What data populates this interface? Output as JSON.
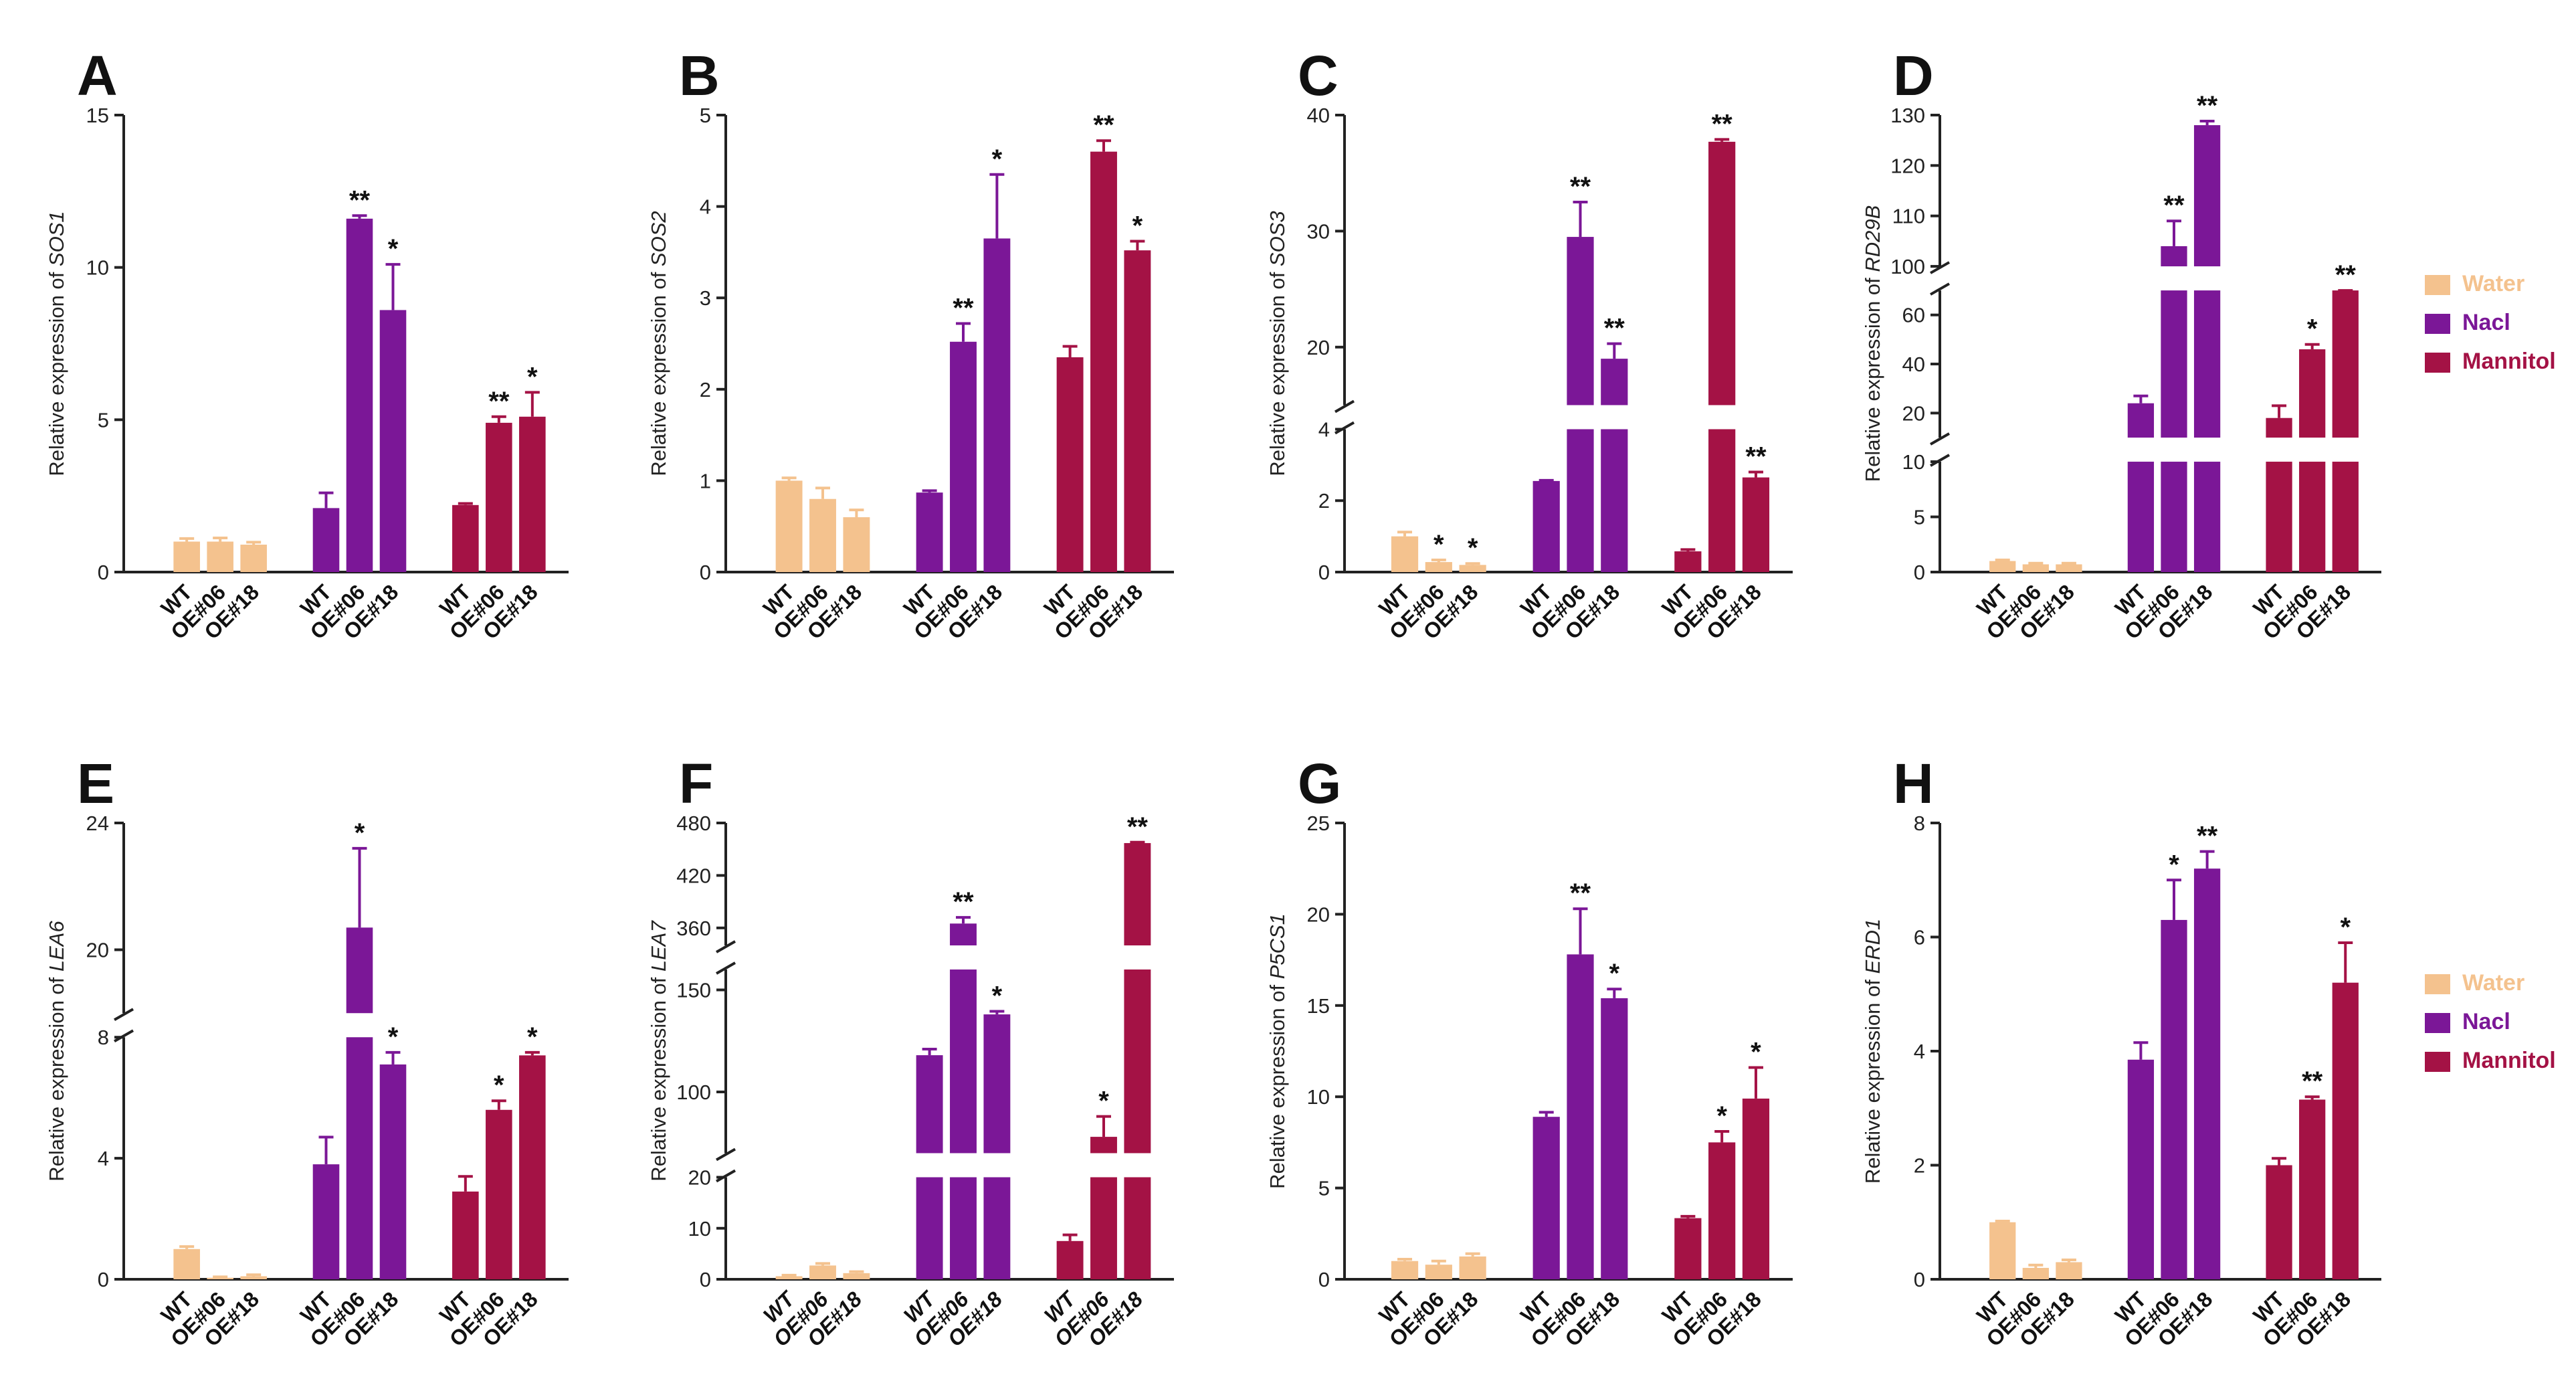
{
  "chart_data": [
    {
      "panel": "A",
      "type": "bar",
      "gene": "SOS1",
      "ylabel_prefix": "Relative expression of ",
      "categories": [
        "WT",
        "OE#06",
        "OE#18"
      ],
      "groups": [
        "Water",
        "Nacl",
        "Mannitol"
      ],
      "segments": [
        {
          "range": [
            0,
            15
          ],
          "ticks": [
            "0",
            "5",
            "10",
            "15"
          ]
        }
      ],
      "bars": [
        [
          1.0,
          1.0,
          0.9
        ],
        [
          2.1,
          11.6,
          8.6
        ],
        [
          2.2,
          4.9,
          5.1
        ]
      ],
      "errors": [
        [
          0.1,
          0.12,
          0.08
        ],
        [
          0.5,
          0.1,
          1.5
        ],
        [
          0.05,
          0.2,
          0.8
        ]
      ],
      "significance": [
        [
          "",
          "",
          ""
        ],
        [
          "",
          "**",
          "*"
        ],
        [
          "",
          "**",
          "*"
        ]
      ]
    },
    {
      "panel": "B",
      "type": "bar",
      "gene": "SOS2",
      "ylabel_prefix": "Relative expression of ",
      "categories": [
        "WT",
        "OE#06",
        "OE#18"
      ],
      "groups": [
        "Water",
        "Nacl",
        "Mannitol"
      ],
      "segments": [
        {
          "range": [
            0,
            5
          ],
          "ticks": [
            "0",
            "1",
            "2",
            "3",
            "4",
            "5"
          ]
        }
      ],
      "bars": [
        [
          1.0,
          0.8,
          0.6
        ],
        [
          0.87,
          2.52,
          3.65
        ],
        [
          2.35,
          4.6,
          3.52
        ]
      ],
      "errors": [
        [
          0.03,
          0.12,
          0.08
        ],
        [
          0.02,
          0.2,
          0.7
        ],
        [
          0.12,
          0.12,
          0.1
        ]
      ],
      "significance": [
        [
          "",
          "",
          ""
        ],
        [
          "",
          "**",
          "*"
        ],
        [
          "",
          "**",
          "*"
        ]
      ]
    },
    {
      "panel": "C",
      "type": "bar",
      "gene": "SOS3",
      "ylabel_prefix": "Relative expression of ",
      "categories": [
        "WT",
        "OE#06",
        "OE#18"
      ],
      "groups": [
        "Water",
        "Nacl",
        "Mannitol"
      ],
      "segments": [
        {
          "range": [
            0,
            4
          ],
          "ticks": [
            "0",
            "2",
            "4"
          ]
        },
        {
          "range": [
            15,
            40
          ],
          "ticks": [
            "20",
            "30",
            "40"
          ]
        }
      ],
      "bars": [
        [
          1.0,
          0.28,
          0.2
        ],
        [
          2.55,
          29.5,
          19.0
        ],
        [
          0.58,
          37.7,
          2.65
        ]
      ],
      "errors": [
        [
          0.12,
          0.06,
          0.04
        ],
        [
          0.02,
          3.0,
          1.3
        ],
        [
          0.05,
          0.2,
          0.15
        ]
      ],
      "significance": [
        [
          "",
          "*",
          "*"
        ],
        [
          "",
          "**",
          "**"
        ],
        [
          "",
          "**",
          "**"
        ]
      ]
    },
    {
      "panel": "D",
      "type": "bar",
      "gene": "RD29B",
      "ylabel_prefix": "Relative expression of ",
      "categories": [
        "WT",
        "OE#06",
        "OE#18"
      ],
      "groups": [
        "Water",
        "Nacl",
        "Mannitol"
      ],
      "segments": [
        {
          "range": [
            0,
            10
          ],
          "ticks": [
            "0",
            "5",
            "10"
          ]
        },
        {
          "range": [
            10,
            70
          ],
          "ticks": [
            "20",
            "40",
            "60"
          ]
        },
        {
          "range": [
            100,
            130
          ],
          "ticks": [
            "100",
            "110",
            "120",
            "130"
          ]
        }
      ],
      "bars": [
        [
          1.0,
          0.7,
          0.7
        ],
        [
          24,
          104,
          128
        ],
        [
          18,
          46,
          70
        ]
      ],
      "errors": [
        [
          0.1,
          0.1,
          0.1
        ],
        [
          3,
          5,
          0.8
        ],
        [
          5,
          2,
          6
        ]
      ],
      "significance": [
        [
          "",
          "",
          ""
        ],
        [
          "",
          "**",
          "**"
        ],
        [
          "",
          "*",
          "**"
        ]
      ]
    },
    {
      "panel": "E",
      "type": "bar",
      "gene": "LEA6",
      "ylabel_prefix": "Relative expression of ",
      "categories": [
        "WT",
        "OE#06",
        "OE#18"
      ],
      "groups": [
        "Water",
        "Nacl",
        "Mannitol"
      ],
      "segments": [
        {
          "range": [
            0,
            8
          ],
          "ticks": [
            "0",
            "4",
            "8"
          ]
        },
        {
          "range": [
            18,
            24
          ],
          "ticks": [
            "20",
            "24"
          ]
        }
      ],
      "bars": [
        [
          1.0,
          0.05,
          0.1
        ],
        [
          3.8,
          20.7,
          7.1
        ],
        [
          2.9,
          5.6,
          7.4
        ]
      ],
      "errors": [
        [
          0.08,
          0.03,
          0.05
        ],
        [
          0.9,
          2.5,
          0.4
        ],
        [
          0.5,
          0.3,
          0.1
        ]
      ],
      "significance": [
        [
          "",
          "",
          ""
        ],
        [
          "",
          "*",
          "*"
        ],
        [
          "",
          "*",
          "*"
        ]
      ]
    },
    {
      "panel": "F",
      "type": "bar",
      "gene": "LEA7",
      "ylabel_prefix": "Relative expression of ",
      "categories": [
        "WT",
        "OE#06",
        "OE#18"
      ],
      "groups": [
        "Water",
        "Nacl",
        "Mannitol"
      ],
      "italic_categories": true,
      "segments": [
        {
          "range": [
            0,
            20
          ],
          "ticks": [
            "0",
            "10",
            "20"
          ]
        },
        {
          "range": [
            70,
            160
          ],
          "ticks": [
            "100",
            "150"
          ]
        },
        {
          "range": [
            340,
            480
          ],
          "ticks": [
            "360",
            "420",
            "480"
          ]
        }
      ],
      "bars": [
        [
          0.6,
          2.7,
          1.2
        ],
        [
          118,
          365,
          138
        ],
        [
          7.5,
          78,
          457
        ]
      ],
      "errors": [
        [
          0.2,
          0.4,
          0.3
        ],
        [
          3,
          7,
          1.5
        ],
        [
          1.2,
          10,
          1
        ]
      ],
      "significance": [
        [
          "",
          "",
          ""
        ],
        [
          "",
          "**",
          "*"
        ],
        [
          "",
          "*",
          "**"
        ]
      ]
    },
    {
      "panel": "G",
      "type": "bar",
      "gene": "P5CS1",
      "ylabel_prefix": "Relative expression of ",
      "categories": [
        "WT",
        "OE#06",
        "OE#18"
      ],
      "groups": [
        "Water",
        "Nacl",
        "Mannitol"
      ],
      "segments": [
        {
          "range": [
            0,
            25
          ],
          "ticks": [
            "0",
            "5",
            "10",
            "15",
            "20",
            "25"
          ]
        }
      ],
      "bars": [
        [
          1.0,
          0.8,
          1.25
        ],
        [
          8.9,
          17.8,
          15.4
        ],
        [
          3.35,
          7.5,
          9.9
        ]
      ],
      "errors": [
        [
          0.1,
          0.2,
          0.15
        ],
        [
          0.25,
          2.5,
          0.5
        ],
        [
          0.1,
          0.6,
          1.7
        ]
      ],
      "significance": [
        [
          "",
          "",
          ""
        ],
        [
          "",
          "**",
          "*"
        ],
        [
          "",
          "*",
          "*"
        ]
      ]
    },
    {
      "panel": "H",
      "type": "bar",
      "gene": "ERD1",
      "ylabel_prefix": "Relative expression of ",
      "categories": [
        "WT",
        "OE#06",
        "OE#18"
      ],
      "groups": [
        "Water",
        "Nacl",
        "Mannitol"
      ],
      "segments": [
        {
          "range": [
            0,
            8
          ],
          "ticks": [
            "0",
            "2",
            "4",
            "6",
            "8"
          ]
        }
      ],
      "bars": [
        [
          1.0,
          0.2,
          0.3
        ],
        [
          3.85,
          6.3,
          7.2
        ],
        [
          2.0,
          3.15,
          5.2
        ]
      ],
      "errors": [
        [
          0.02,
          0.05,
          0.04
        ],
        [
          0.3,
          0.7,
          0.3
        ],
        [
          0.12,
          0.05,
          0.7
        ]
      ],
      "significance": [
        [
          "",
          "",
          ""
        ],
        [
          "",
          "*",
          "**"
        ],
        [
          "",
          "**",
          "*"
        ]
      ]
    }
  ],
  "legend": {
    "entries": [
      {
        "label": "Water",
        "color": "#F4C28E"
      },
      {
        "label": "Nacl",
        "color": "#7B1797"
      },
      {
        "label": "Mannitol",
        "color": "#A41245"
      }
    ]
  }
}
